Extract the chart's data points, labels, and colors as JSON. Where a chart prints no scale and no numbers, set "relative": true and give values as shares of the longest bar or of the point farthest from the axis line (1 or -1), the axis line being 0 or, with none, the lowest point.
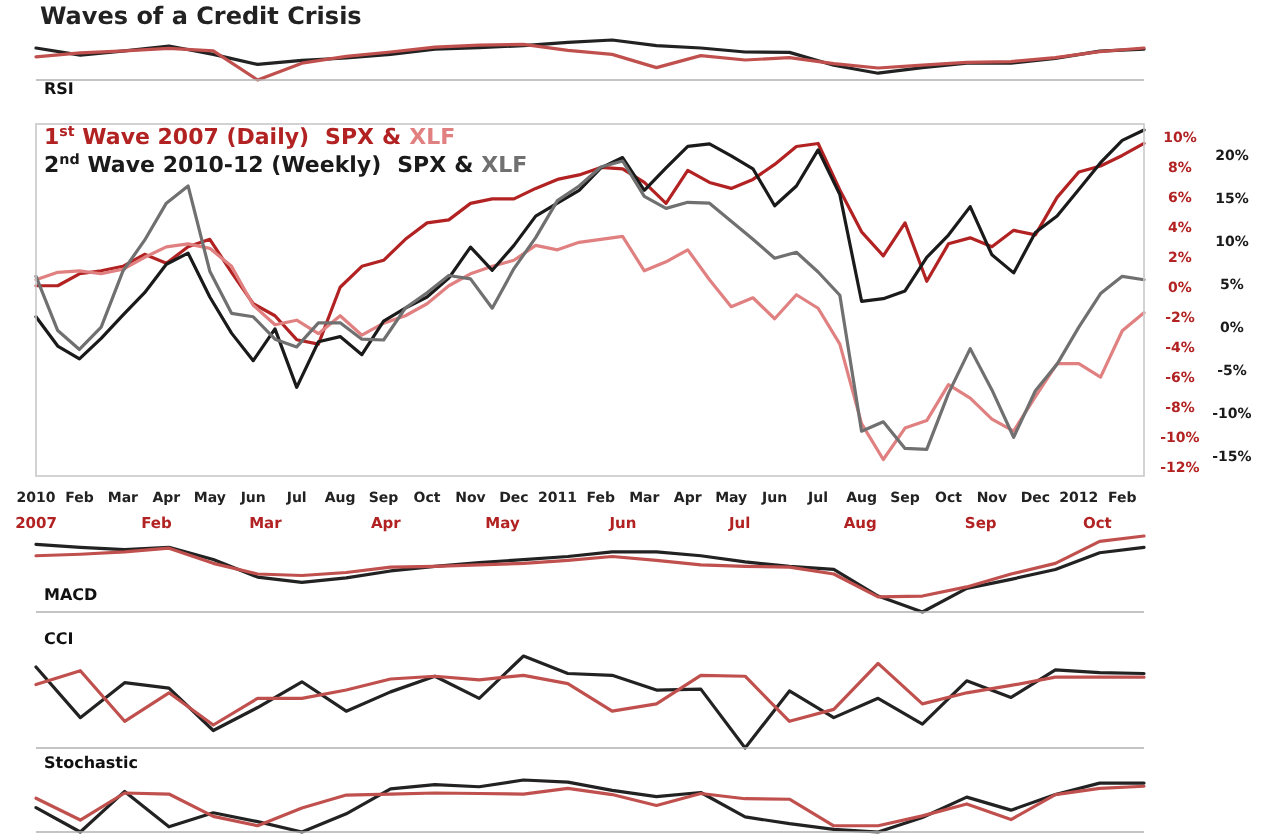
{
  "chart_data": [
    {
      "type": "line",
      "title": "Waves of a Credit Crisis",
      "annotations": [
        "RSI"
      ],
      "relative": true,
      "categories": [
        null,
        null,
        null,
        null,
        null,
        null,
        null,
        null,
        null,
        null,
        null,
        null,
        null,
        null,
        null,
        null,
        null,
        null,
        null,
        null,
        null,
        null,
        null,
        null,
        null,
        null
      ],
      "series": [
        {
          "color": "#222222",
          "values": [
            0.8,
            0.62,
            0.73,
            0.85,
            0.64,
            0.39,
            0.49,
            0.55,
            0.64,
            0.77,
            0.81,
            0.86,
            0.94,
            1,
            0.86,
            0.8,
            0.7,
            0.69,
            0.37,
            0.17,
            0.31,
            0.42,
            0.42,
            0.54,
            0.72,
            0.77
          ]
        },
        {
          "color": "#c0504d",
          "values": [
            0.58,
            0.68,
            0.73,
            0.79,
            0.73,
            0,
            0.42,
            0.59,
            0.7,
            0.82,
            0.87,
            0.89,
            0.74,
            0.64,
            0.31,
            0.61,
            0.5,
            0.56,
            0.41,
            0.3,
            0.37,
            0.44,
            0.46,
            0.56,
            0.71,
            0.8
          ]
        }
      ]
    },
    {
      "type": "line",
      "legend": "top left",
      "annotations": [
        "1$^{st}$ Wave 2007  (Daily)",
        "2$^{nd}$ Wave 2010-12  (Weekly)",
        "&"
      ],
      "categories": [
        "2010",
        null,
        "Feb",
        null,
        "Mar",
        null,
        "Apr",
        null,
        "May",
        null,
        "Jun",
        null,
        "Jul",
        null,
        "Aug",
        null,
        "Sep",
        null,
        "Oct",
        null,
        "Nov",
        null,
        "Dec",
        null,
        "2011",
        null,
        "Feb",
        null,
        "Mar",
        null,
        "Apr",
        null,
        "May",
        null,
        "Jun",
        null,
        "Jul",
        null,
        "Aug",
        null,
        "Sep",
        null,
        "Oct",
        null,
        "Nov",
        null,
        "Dec",
        null,
        "2012",
        null,
        "Feb",
        null
      ],
      "x2lim": [
        "2007-01-01",
        "2007-10-13"
      ],
      "x2ticks": [
        {
          "value": "2007-01-01",
          "label": "2007"
        },
        {
          "value": "2007-02-01",
          "label": "Feb"
        },
        {
          "value": "2007-03-01",
          "label": "Mar"
        },
        {
          "value": "2007-04-01",
          "label": "Apr"
        },
        {
          "value": "2007-05-01",
          "label": "May"
        },
        {
          "value": "2007-06-01",
          "label": "Jun"
        },
        {
          "value": "2007-07-01",
          "label": "Jul"
        },
        {
          "value": "2007-08-01",
          "label": "Aug"
        },
        {
          "value": "2007-09-01",
          "label": "Sep"
        },
        {
          "value": "2007-10-01",
          "label": "Oct"
        }
      ],
      "ylim": [
        -12.7,
        10.8
      ],
      "yticks": [
        {
          "value": 10,
          "label": "10%"
        },
        {
          "value": 8,
          "label": "8%"
        },
        {
          "value": 6,
          "label": "6%"
        },
        {
          "value": 4,
          "label": "4%"
        },
        {
          "value": 2,
          "label": "2%"
        },
        {
          "value": 0,
          "label": "0%"
        },
        {
          "value": -2,
          "label": "-2%"
        },
        {
          "value": -4,
          "label": "-4%"
        },
        {
          "value": -6,
          "label": "-6%"
        },
        {
          "value": -8,
          "label": "-8%"
        },
        {
          "value": -10,
          "label": "-10%"
        },
        {
          "value": -12,
          "label": "-12%"
        }
      ],
      "y2lim": [
        -17.4,
        23.5
      ],
      "y2ticks": [
        {
          "value": 20,
          "label": "20%"
        },
        {
          "value": 15,
          "label": "15%"
        },
        {
          "value": 10,
          "label": "10%"
        },
        {
          "value": 5,
          "label": "5%"
        },
        {
          "value": 0,
          "label": "0%"
        },
        {
          "value": -5,
          "label": "-5%"
        },
        {
          "value": -10,
          "label": "-10%"
        },
        {
          "value": -15,
          "label": "-15%"
        }
      ],
      "series": [
        {
          "name": "SPX",
          "color": "#b22222",
          "values": [
            0,
            0,
            0.8,
            1,
            1.3,
            2.1,
            1.5,
            2.6,
            3.1,
            0.9,
            -1.2,
            -2,
            -3.6,
            -3.9,
            -0.1,
            1.3,
            1.7,
            3.1,
            4.2,
            4.4,
            5.5,
            5.8,
            5.8,
            6.5,
            7.1,
            7.4,
            7.9,
            7.8,
            6.9,
            5.5,
            7.7,
            6.9,
            6.5,
            7.1,
            8.1,
            9.3,
            9.5,
            6.4,
            3.6,
            2,
            4.2,
            0.3,
            2.8,
            3.2,
            2.6,
            3.7,
            3.4,
            5.9,
            7.6,
            8,
            8.7,
            9.5
          ]
        },
        {
          "name": "XLF",
          "color": "#e08080",
          "values": [
            0.4,
            0.9,
            1,
            0.8,
            1.1,
            1.9,
            2.6,
            2.8,
            2.5,
            1.3,
            -1.3,
            -2.6,
            -2.3,
            -3.2,
            -2,
            -3.3,
            -2.5,
            -2,
            -1.2,
            0,
            0.8,
            1.3,
            1.7,
            2.7,
            2.4,
            2.9,
            3.1,
            3.3,
            1,
            1.6,
            2.4,
            0.4,
            -1.4,
            -0.8,
            -2.2,
            -0.6,
            -1.5,
            -3.9,
            -9.2,
            -11.6,
            -9.5,
            -9,
            -6.6,
            -7.5,
            -8.9,
            -9.7,
            -7.4,
            -5.2,
            -5.2,
            -6.1,
            -3,
            -1.8
          ]
        },
        {
          "name": "SPX",
          "color": "#1a1a1a",
          "axis": "y2",
          "values": [
            1.1,
            -2.3,
            -3.8,
            -1.4,
            1.3,
            3.9,
            7.2,
            8.5,
            3.4,
            -0.8,
            -4,
            -0.3,
            -7.1,
            -1.8,
            -1.2,
            -3.3,
            0.6,
            2.1,
            3.4,
            5.6,
            9.2,
            6.5,
            9.4,
            12.8,
            14.3,
            15.8,
            18.4,
            19.6,
            15.8,
            18.4,
            20.9,
            21.2,
            19.8,
            18.3,
            14,
            16.3,
            20.5,
            15.3,
            2.9,
            3.2,
            4.1,
            8,
            10.6,
            13.9,
            8.3,
            6.2,
            10.9,
            12.8,
            15.9,
            19,
            21.6,
            22.8
          ]
        },
        {
          "name": "XLF",
          "color": "#707070",
          "axis": "y2",
          "values": [
            5.8,
            -0.5,
            -2.7,
            -0.1,
            6.4,
            10,
            14.3,
            16.3,
            6.4,
            1.5,
            1.1,
            -1.5,
            -2.4,
            0.4,
            0.4,
            -1.5,
            -1.6,
            2.1,
            3.9,
            5.9,
            5.5,
            2.1,
            6.7,
            10.3,
            14.6,
            16.3,
            18.5,
            19.2,
            15.1,
            13.7,
            14.4,
            14.3,
            12.2,
            10.1,
            7.9,
            8.6,
            6.3,
            3.6,
            -12.2,
            -11.1,
            -14.2,
            -14.3,
            -7.8,
            -2.6,
            -7.4,
            -12.9,
            -7.5,
            -4.4,
            -0.1,
            3.8,
            5.8,
            5.4
          ]
        }
      ]
    },
    {
      "type": "line",
      "annotations": [
        "MACD"
      ],
      "relative": true,
      "categories": [
        null,
        null,
        null,
        null,
        null,
        null,
        null,
        null,
        null,
        null,
        null,
        null,
        null,
        null,
        null,
        null,
        null,
        null,
        null,
        null,
        null,
        null,
        null,
        null,
        null,
        null
      ],
      "series": [
        {
          "color": "#222222",
          "values": [
            0.89,
            0.85,
            0.82,
            0.85,
            0.69,
            0.46,
            0.39,
            0.45,
            0.54,
            0.6,
            0.65,
            0.69,
            0.73,
            0.79,
            0.79,
            0.74,
            0.66,
            0.6,
            0.56,
            0.21,
            0,
            0.31,
            0.43,
            0.56,
            0.78,
            0.85
          ]
        },
        {
          "color": "#c0504d",
          "values": [
            0.74,
            0.76,
            0.79,
            0.84,
            0.64,
            0.5,
            0.48,
            0.52,
            0.59,
            0.6,
            0.62,
            0.64,
            0.68,
            0.73,
            0.68,
            0.62,
            0.6,
            0.59,
            0.5,
            0.2,
            0.21,
            0.33,
            0.5,
            0.64,
            0.93,
            1
          ]
        }
      ]
    },
    {
      "type": "line",
      "annotations": [
        "CCI"
      ],
      "relative": true,
      "categories": [
        null,
        null,
        null,
        null,
        null,
        null,
        null,
        null,
        null,
        null,
        null,
        null,
        null,
        null,
        null,
        null,
        null,
        null,
        null,
        null,
        null,
        null,
        null,
        null,
        null,
        null
      ],
      "series": [
        {
          "color": "#222222",
          "values": [
            0.88,
            0.33,
            0.71,
            0.65,
            0.19,
            0.44,
            0.72,
            0.4,
            0.61,
            0.78,
            0.54,
            1,
            0.81,
            0.79,
            0.63,
            0.64,
            0,
            0.62,
            0.33,
            0.54,
            0.26,
            0.73,
            0.55,
            0.85,
            0.82,
            0.81
          ]
        },
        {
          "color": "#c0504d",
          "values": [
            0.69,
            0.84,
            0.29,
            0.6,
            0.25,
            0.54,
            0.54,
            0.63,
            0.75,
            0.78,
            0.74,
            0.79,
            0.7,
            0.4,
            0.48,
            0.79,
            0.78,
            0.29,
            0.42,
            0.92,
            0.48,
            0.6,
            0.68,
            0.77,
            0.77,
            0.77
          ]
        }
      ]
    },
    {
      "type": "line",
      "annotations": [
        "Stochastic"
      ],
      "relative": true,
      "categories": [
        null,
        null,
        null,
        null,
        null,
        null,
        null,
        null,
        null,
        null,
        null,
        null,
        null,
        null,
        null,
        null,
        null,
        null,
        null,
        null,
        null,
        null,
        null,
        null,
        null,
        null
      ],
      "series": [
        {
          "color": "#222222",
          "values": [
            0.47,
            0,
            0.78,
            0.1,
            0.37,
            0.2,
            0,
            0.35,
            0.83,
            0.91,
            0.87,
            1,
            0.96,
            0.8,
            0.68,
            0.76,
            0.29,
            0.16,
            0.05,
            0,
            0.28,
            0.67,
            0.42,
            0.72,
            0.94,
            0.94
          ]
        },
        {
          "color": "#c0504d",
          "values": [
            0.65,
            0.23,
            0.75,
            0.73,
            0.3,
            0.12,
            0.46,
            0.71,
            0.73,
            0.75,
            0.74,
            0.73,
            0.84,
            0.72,
            0.51,
            0.74,
            0.64,
            0.63,
            0.12,
            0.12,
            0.31,
            0.54,
            0.24,
            0.72,
            0.84,
            0.88
          ]
        }
      ]
    }
  ]
}
